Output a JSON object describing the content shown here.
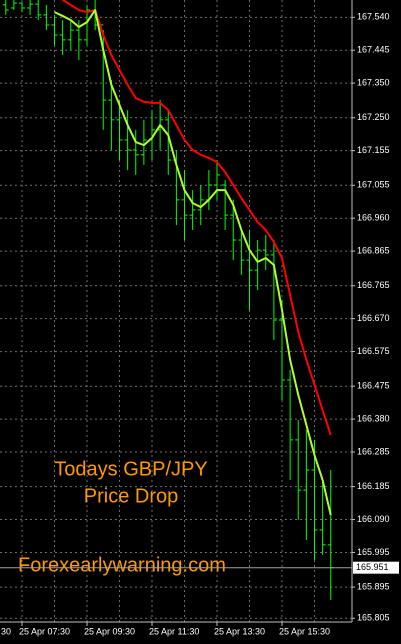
{
  "chart_data": {
    "type": "ohlc",
    "bar_color": "#00ff00",
    "categories": [
      null,
      null,
      "25 Apr 07:30",
      null,
      null,
      null,
      null,
      null,
      null,
      null,
      "25 Apr 09:30",
      null,
      null,
      null,
      null,
      null,
      null,
      null,
      "25 Apr 11:30",
      null,
      null,
      null,
      null,
      null,
      null,
      null,
      "25 Apr 13:30",
      null,
      null,
      null,
      null,
      null,
      null,
      null,
      "25 Apr 15:30",
      null,
      null,
      null,
      null,
      null,
      null
    ],
    "partial_x_label": "30",
    "open": [
      167.576,
      167.567,
      167.581,
      167.567,
      167.578,
      167.547,
      167.518,
      167.489,
      167.475,
      167.503,
      167.475,
      167.561,
      167.518,
      167.301,
      167.244,
      167.186,
      167.157,
      167.143,
      167.186,
      167.215,
      167.244,
      167.128,
      167.013,
      166.969,
      166.984,
      167.013,
      167.056,
      167.056,
      166.969,
      166.897,
      166.839,
      166.81,
      166.868,
      166.854,
      166.666,
      166.493,
      166.32,
      166.175,
      166.233,
      166.06,
      166.017
    ],
    "high": [
      167.59,
      167.59,
      167.584,
      167.59,
      167.59,
      167.576,
      167.547,
      167.532,
      167.532,
      167.532,
      167.576,
      167.59,
      167.503,
      167.359,
      167.301,
      167.272,
      167.215,
      167.244,
      167.272,
      167.301,
      167.272,
      167.157,
      167.099,
      167.041,
      167.056,
      167.099,
      167.128,
      167.07,
      167.013,
      166.926,
      166.926,
      166.897,
      166.912,
      166.897,
      166.724,
      166.522,
      166.377,
      166.349,
      166.32,
      166.204,
      166.233
    ],
    "low": [
      167.547,
      167.561,
      167.555,
      167.547,
      167.532,
      167.503,
      167.46,
      167.431,
      167.446,
      167.417,
      167.46,
      167.503,
      167.215,
      167.157,
      167.128,
      167.099,
      167.085,
      167.114,
      167.128,
      167.157,
      167.085,
      166.94,
      166.897,
      166.926,
      166.94,
      166.984,
      167.013,
      166.926,
      166.839,
      166.796,
      166.695,
      166.753,
      166.81,
      166.608,
      166.435,
      166.204,
      166.089,
      166.031,
      165.973,
      165.988,
      165.858
    ],
    "close": [
      167.561,
      167.581,
      167.567,
      167.578,
      167.547,
      167.518,
      167.489,
      167.475,
      167.503,
      167.475,
      167.561,
      167.518,
      167.301,
      167.244,
      167.186,
      167.157,
      167.143,
      167.186,
      167.215,
      167.244,
      167.128,
      167.013,
      166.969,
      166.984,
      167.013,
      167.056,
      167.085,
      166.969,
      166.897,
      166.839,
      166.81,
      166.868,
      166.854,
      166.666,
      166.493,
      166.32,
      166.175,
      166.233,
      166.06,
      166.017,
      165.951
    ],
    "series": [
      {
        "color": "#ff0000",
        "values": [
          null,
          null,
          null,
          null,
          null,
          null,
          null,
          167.59,
          167.576,
          167.561,
          167.555,
          167.561,
          167.489,
          167.431,
          167.388,
          167.345,
          167.307,
          167.296,
          167.293,
          167.293,
          167.272,
          167.229,
          167.186,
          167.157,
          167.143,
          167.134,
          167.122,
          167.093,
          167.056,
          167.018,
          166.984,
          166.949,
          166.926,
          166.891,
          166.845,
          166.738,
          166.632,
          166.551,
          166.479,
          166.406,
          166.334
        ]
      },
      {
        "color": "#adff2f",
        "values": [
          null,
          null,
          null,
          null,
          null,
          null,
          167.555,
          167.544,
          167.532,
          167.512,
          167.526,
          167.561,
          167.446,
          167.345,
          167.287,
          167.229,
          167.18,
          167.171,
          167.192,
          167.229,
          167.2,
          167.114,
          167.041,
          167.004,
          166.992,
          167.013,
          167.041,
          167.041,
          166.998,
          166.926,
          166.868,
          166.834,
          166.845,
          166.825,
          166.695,
          166.551,
          166.45,
          166.363,
          166.276,
          166.204,
          166.103
        ]
      }
    ],
    "current_price": 165.951,
    "ylim": [
      165.8,
      167.59
    ],
    "yticks": [
      {
        "value": 167.54,
        "label": "167.540"
      },
      167.445,
      {
        "value": 167.35,
        "label": "167.350"
      },
      {
        "value": 167.25,
        "label": "167.250"
      },
      167.155,
      167.055,
      {
        "value": 166.96,
        "label": "166.960"
      },
      166.865,
      166.765,
      {
        "value": 166.67,
        "label": "166.670"
      },
      166.575,
      166.475,
      {
        "value": 166.38,
        "label": "166.380"
      },
      166.285,
      166.185,
      {
        "value": 166.09,
        "label": "166.090"
      },
      165.995,
      165.895,
      165.805
    ],
    "grid": true,
    "annotations": [
      "Todays GBP/JPY",
      "Price Drop",
      "Forexearlywarning.com"
    ]
  }
}
